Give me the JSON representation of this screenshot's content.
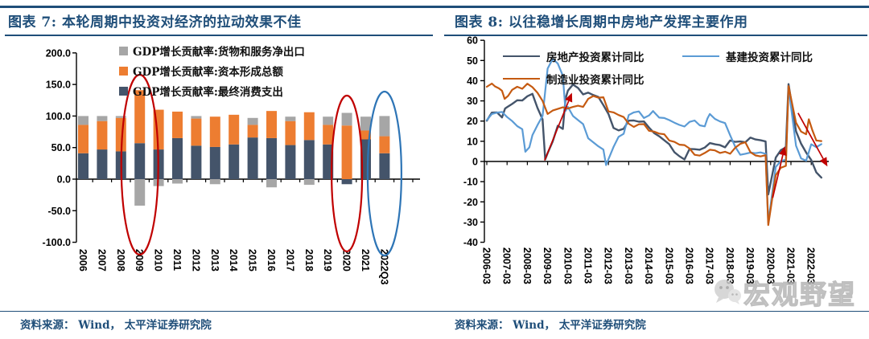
{
  "figures": [
    {
      "title": "图表 7:  本轮周期中投资对经济的拉动效果不佳",
      "source": "资料来源： Wind， 太平洋证券研究院"
    },
    {
      "title": "图表 8:  以往稳增长周期中房地产发挥主要作用",
      "source": "资料来源： Wind， 太平洋证券研究院"
    }
  ],
  "watermark": {
    "label": "宏观野望",
    "icon": "wechat-bubble-icon"
  },
  "colors": {
    "rule_navy": "#1F4E79",
    "annotation_red": "#C00000",
    "annotation_blue": "#2E75B6"
  },
  "chart_data": [
    {
      "type": "bar",
      "stacked": true,
      "title": "图表 7:  本轮周期中投资对经济的拉动效果不佳",
      "categories": [
        "2006",
        "2007",
        "2008",
        "2009",
        "2010",
        "2011",
        "2012",
        "2013",
        "2014",
        "2015",
        "2016",
        "2017",
        "2018",
        "2019",
        "2020",
        "2021",
        "2022Q3"
      ],
      "series": [
        {
          "name": "GDP增长贡献率:最终消费支出",
          "color": "#44546A",
          "values": [
            41,
            47,
            44,
            57,
            47,
            65,
            53,
            51,
            55,
            66,
            65,
            54,
            62,
            55,
            -8,
            63,
            41
          ]
        },
        {
          "name": "GDP增长贡献率:资本形成总额",
          "color": "#ED7D31",
          "values": [
            45,
            45,
            53,
            84,
            63,
            42,
            43,
            48,
            47,
            20,
            43,
            38,
            44,
            31,
            85,
            14,
            27
          ]
        },
        {
          "name": "GDP增长贡献率:货物和服务净出口",
          "color": "#A6A6A6",
          "values": [
            14,
            8,
            3,
            -42,
            -11,
            -7,
            4,
            -8,
            0,
            11,
            -13,
            7,
            -9,
            13,
            20,
            22,
            32
          ]
        }
      ],
      "ylim": [
        -100,
        200
      ],
      "yticks": [
        "200.0",
        "150.0",
        "100.0",
        "50.0",
        "0.0",
        "-50.0",
        "-100.0"
      ],
      "legend_order": [
        2,
        1,
        0
      ],
      "annotations": [
        {
          "shape": "ellipse",
          "category": "2009",
          "color": "#C00000",
          "cy": 205,
          "rx": 23,
          "ry": 112
        },
        {
          "shape": "ellipse",
          "category": "2020",
          "color": "#C00000",
          "cy": 216,
          "rx": 19,
          "ry": 97
        },
        {
          "shape": "ellipse",
          "category": "2022Q3",
          "color": "#2E75B6",
          "cy": 216,
          "rx": 21,
          "ry": 102
        }
      ]
    },
    {
      "type": "line",
      "title": "图表 8:  以往稳增长周期中房地产发挥主要作用",
      "xticks": [
        "2006-03",
        "2007-03",
        "2008-03",
        "2009-03",
        "2010-03",
        "2011-03",
        "2012-03",
        "2013-03",
        "2014-03",
        "2015-03",
        "2016-03",
        "2017-03",
        "2018-03",
        "2019-03",
        "2020-03",
        "2021-03",
        "2022-03"
      ],
      "ylim": [
        -40,
        60
      ],
      "yticks": [
        "60",
        "50",
        "40",
        "30",
        "20",
        "10",
        "0",
        "-10",
        "-20",
        "-30",
        "-40"
      ],
      "series": [
        {
          "name": "房地产投资累计同比",
          "color": "#44546A",
          "width": 2.4,
          "points": [
            [
              2006.2,
              20.2
            ],
            [
              2006.45,
              24.2
            ],
            [
              2006.7,
              24.3
            ],
            [
              2006.95,
              21.8
            ],
            [
              2007.1,
              26.2
            ],
            [
              2007.2,
              26.9
            ],
            [
              2007.45,
              28.5
            ],
            [
              2007.7,
              30.3
            ],
            [
              2007.95,
              30.2
            ],
            [
              2008.2,
              32.3
            ],
            [
              2008.45,
              33.5
            ],
            [
              2008.7,
              26.5
            ],
            [
              2008.95,
              20.9
            ],
            [
              2009.08,
              1.0
            ],
            [
              2009.2,
              4.1
            ],
            [
              2009.45,
              9.9
            ],
            [
              2009.7,
              17.7
            ],
            [
              2009.95,
              16.1
            ],
            [
              2010.08,
              31.0
            ],
            [
              2010.2,
              35.1
            ],
            [
              2010.45,
              38.1
            ],
            [
              2010.7,
              36.4
            ],
            [
              2010.95,
              33.2
            ],
            [
              2011.2,
              34.1
            ],
            [
              2011.45,
              32.9
            ],
            [
              2011.7,
              32.0
            ],
            [
              2011.95,
              27.9
            ],
            [
              2012.2,
              23.5
            ],
            [
              2012.45,
              16.6
            ],
            [
              2012.7,
              15.4
            ],
            [
              2012.95,
              16.2
            ],
            [
              2013.2,
              20.2
            ],
            [
              2013.45,
              20.3
            ],
            [
              2013.7,
              19.7
            ],
            [
              2013.95,
              19.8
            ],
            [
              2014.2,
              16.8
            ],
            [
              2014.45,
              14.1
            ],
            [
              2014.7,
              12.5
            ],
            [
              2014.95,
              10.5
            ],
            [
              2015.2,
              8.5
            ],
            [
              2015.45,
              4.6
            ],
            [
              2015.7,
              2.6
            ],
            [
              2015.95,
              1.0
            ],
            [
              2016.2,
              6.2
            ],
            [
              2016.45,
              6.1
            ],
            [
              2016.7,
              5.8
            ],
            [
              2016.95,
              6.9
            ],
            [
              2017.2,
              9.1
            ],
            [
              2017.45,
              8.5
            ],
            [
              2017.7,
              8.1
            ],
            [
              2017.95,
              7.0
            ],
            [
              2018.2,
              10.4
            ],
            [
              2018.45,
              9.7
            ],
            [
              2018.7,
              9.9
            ],
            [
              2018.95,
              9.5
            ],
            [
              2019.2,
              11.8
            ],
            [
              2019.45,
              10.9
            ],
            [
              2019.7,
              10.5
            ],
            [
              2019.95,
              9.9
            ],
            [
              2020.08,
              -16.3
            ],
            [
              2020.45,
              1.9
            ],
            [
              2020.7,
              5.6
            ],
            [
              2020.95,
              7.0
            ],
            [
              2021.08,
              38.3
            ],
            [
              2021.45,
              15.0
            ],
            [
              2021.7,
              8.8
            ],
            [
              2021.95,
              4.4
            ],
            [
              2022.2,
              0.7
            ],
            [
              2022.45,
              -5.4
            ],
            [
              2022.7,
              -8.0
            ]
          ]
        },
        {
          "name": "基建投资累计同比",
          "color": "#5B9BD5",
          "width": 2.2,
          "points": [
            [
              2006.2,
              20.5
            ],
            [
              2006.45,
              23.5
            ],
            [
              2006.7,
              24.2
            ],
            [
              2006.95,
              24.5
            ],
            [
              2007.2,
              22.0
            ],
            [
              2007.45,
              20.0
            ],
            [
              2007.7,
              17.5
            ],
            [
              2007.95,
              16.0
            ],
            [
              2008.1,
              4.8
            ],
            [
              2008.3,
              7.0
            ],
            [
              2008.45,
              13.0
            ],
            [
              2008.7,
              18.0
            ],
            [
              2008.95,
              22.5
            ],
            [
              2009.2,
              46.0
            ],
            [
              2009.45,
              50.8
            ],
            [
              2009.7,
              48.5
            ],
            [
              2009.95,
              42.5
            ],
            [
              2010.08,
              25.0
            ],
            [
              2010.2,
              27.0
            ],
            [
              2010.45,
              22.5
            ],
            [
              2010.7,
              20.5
            ],
            [
              2010.95,
              18.5
            ],
            [
              2011.2,
              11.5
            ],
            [
              2011.45,
              9.5
            ],
            [
              2011.7,
              7.5
            ],
            [
              2011.95,
              5.9
            ],
            [
              2012.08,
              -1.8
            ],
            [
              2012.45,
              7.2
            ],
            [
              2012.7,
              12.2
            ],
            [
              2012.95,
              13.7
            ],
            [
              2013.2,
              23.0
            ],
            [
              2013.45,
              24.3
            ],
            [
              2013.7,
              24.8
            ],
            [
              2013.95,
              21.5
            ],
            [
              2014.2,
              22.8
            ],
            [
              2014.4,
              25.0
            ],
            [
              2014.7,
              21.7
            ],
            [
              2014.95,
              21.5
            ],
            [
              2015.2,
              20.5
            ],
            [
              2015.45,
              19.2
            ],
            [
              2015.7,
              18.1
            ],
            [
              2015.95,
              17.3
            ],
            [
              2016.2,
              19.6
            ],
            [
              2016.45,
              20.3
            ],
            [
              2016.7,
              17.9
            ],
            [
              2016.95,
              17.4
            ],
            [
              2017.08,
              21.3
            ],
            [
              2017.2,
              23.5
            ],
            [
              2017.45,
              21.1
            ],
            [
              2017.7,
              19.8
            ],
            [
              2017.95,
              19.0
            ],
            [
              2018.2,
              13.0
            ],
            [
              2018.45,
              7.3
            ],
            [
              2018.7,
              3.3
            ],
            [
              2018.95,
              3.8
            ],
            [
              2019.2,
              4.4
            ],
            [
              2019.45,
              4.1
            ],
            [
              2019.7,
              4.5
            ],
            [
              2019.95,
              3.8
            ],
            [
              2020.08,
              -30.3
            ],
            [
              2020.45,
              -2.7
            ],
            [
              2020.7,
              0.2
            ],
            [
              2020.95,
              0.9
            ],
            [
              2021.08,
              36.6
            ],
            [
              2021.45,
              7.8
            ],
            [
              2021.7,
              1.5
            ],
            [
              2021.95,
              0.4
            ],
            [
              2022.2,
              8.5
            ],
            [
              2022.45,
              7.1
            ],
            [
              2022.7,
              8.6
            ]
          ]
        },
        {
          "name": "制造业投资累计同比",
          "color": "#C55A11",
          "width": 2.2,
          "points": [
            [
              2006.2,
              37.0
            ],
            [
              2006.45,
              38.6
            ],
            [
              2006.6,
              37.2
            ],
            [
              2006.8,
              36.2
            ],
            [
              2006.95,
              35.0
            ],
            [
              2007.08,
              31.0
            ],
            [
              2007.25,
              32.5
            ],
            [
              2007.45,
              35.5
            ],
            [
              2007.7,
              37.0
            ],
            [
              2007.95,
              36.0
            ],
            [
              2008.2,
              38.5
            ],
            [
              2008.45,
              36.8
            ],
            [
              2008.7,
              34.0
            ],
            [
              2008.95,
              30.0
            ],
            [
              2009.2,
              23.5
            ],
            [
              2009.45,
              25.2
            ],
            [
              2009.7,
              26.0
            ],
            [
              2009.95,
              26.8
            ],
            [
              2010.2,
              26.2
            ],
            [
              2010.45,
              27.0
            ],
            [
              2010.7,
              27.6
            ],
            [
              2010.95,
              27.0
            ],
            [
              2011.2,
              31.0
            ],
            [
              2011.45,
              32.4
            ],
            [
              2011.7,
              31.6
            ],
            [
              2011.95,
              31.8
            ],
            [
              2012.2,
              24.8
            ],
            [
              2012.45,
              24.3
            ],
            [
              2012.7,
              23.0
            ],
            [
              2012.95,
              22.0
            ],
            [
              2013.2,
              18.7
            ],
            [
              2013.45,
              17.1
            ],
            [
              2013.7,
              18.4
            ],
            [
              2013.95,
              18.5
            ],
            [
              2014.2,
              15.2
            ],
            [
              2014.45,
              14.8
            ],
            [
              2014.7,
              13.8
            ],
            [
              2014.95,
              13.5
            ],
            [
              2015.2,
              10.4
            ],
            [
              2015.45,
              9.7
            ],
            [
              2015.7,
              8.3
            ],
            [
              2015.95,
              8.1
            ],
            [
              2016.2,
              6.4
            ],
            [
              2016.45,
              3.3
            ],
            [
              2016.7,
              2.9
            ],
            [
              2016.95,
              4.2
            ],
            [
              2017.2,
              5.8
            ],
            [
              2017.45,
              5.5
            ],
            [
              2017.7,
              4.2
            ],
            [
              2017.95,
              4.8
            ],
            [
              2018.2,
              3.8
            ],
            [
              2018.45,
              6.8
            ],
            [
              2018.7,
              8.7
            ],
            [
              2018.95,
              9.5
            ],
            [
              2019.2,
              4.6
            ],
            [
              2019.45,
              3.0
            ],
            [
              2019.7,
              2.5
            ],
            [
              2019.95,
              3.1
            ],
            [
              2020.08,
              -31.5
            ],
            [
              2020.45,
              -6.8
            ],
            [
              2020.7,
              -3.1
            ],
            [
              2020.95,
              -2.2
            ],
            [
              2021.08,
              37.3
            ],
            [
              2021.45,
              19.2
            ],
            [
              2021.7,
              14.8
            ],
            [
              2021.95,
              13.5
            ],
            [
              2022.08,
              20.9
            ],
            [
              2022.25,
              15.6
            ],
            [
              2022.45,
              10.4
            ],
            [
              2022.7,
              10.1
            ]
          ]
        }
      ],
      "arrows": [
        {
          "from": [
            2009.05,
            0.5
          ],
          "to": [
            2010.4,
            34.0
          ],
          "color": "#C00000"
        },
        {
          "from": [
            2020.3,
            -18.0
          ],
          "to": [
            2020.9,
            7.5
          ],
          "color": "#C00000"
        },
        {
          "from": [
            2021.55,
            24.0
          ],
          "to": [
            2023.0,
            -2.5
          ],
          "color": "#C00000"
        }
      ]
    }
  ]
}
